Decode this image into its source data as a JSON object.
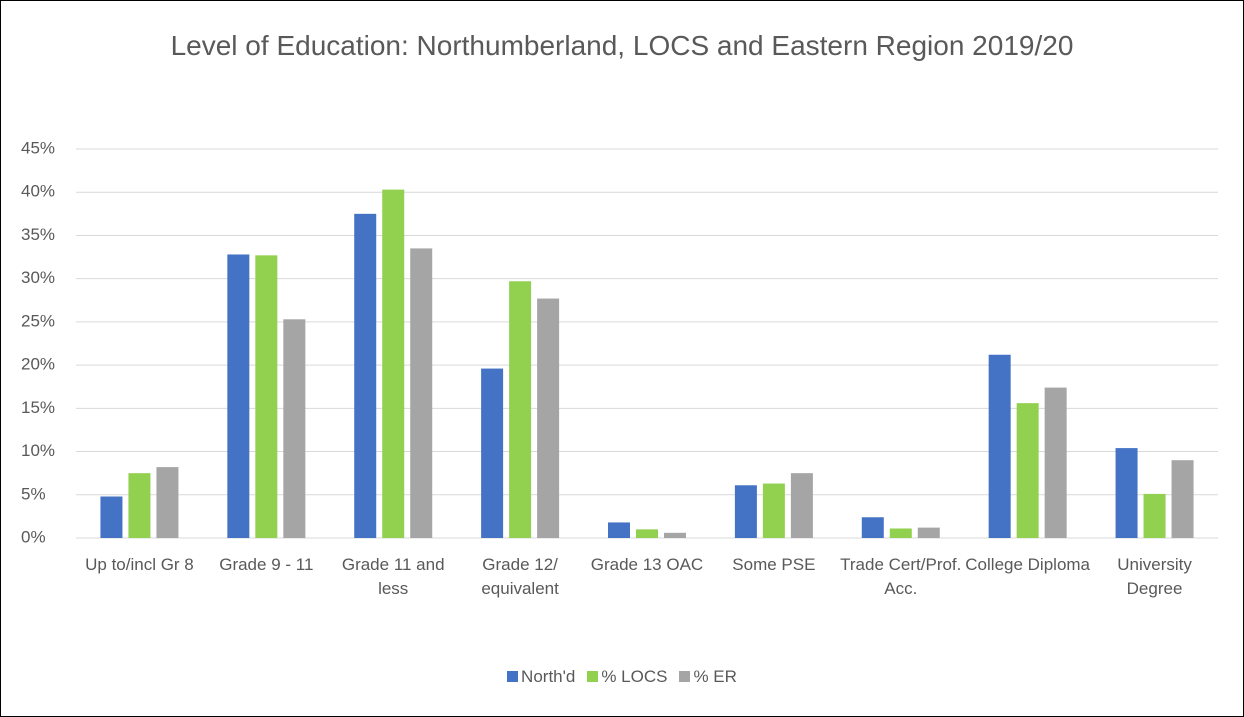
{
  "chart_data": {
    "type": "bar",
    "title": "Level of Education: Northumberland, LOCS and Eastern Region 2019/20",
    "categories": [
      "Up to/incl Gr 8",
      "Grade 9 - 11",
      "Grade 11 and less",
      "Grade 12/ equivalent",
      "Grade 13 OAC",
      "Some PSE",
      "Trade Cert/Prof. Acc.",
      "College Diploma",
      "University Degree"
    ],
    "series": [
      {
        "name": "North'd",
        "color": "#4472c4",
        "values": [
          4.8,
          32.8,
          37.5,
          19.6,
          1.8,
          6.1,
          2.4,
          21.2,
          10.4
        ]
      },
      {
        "name": "% LOCS",
        "color": "#92d050",
        "values": [
          7.5,
          32.7,
          40.3,
          29.7,
          1.0,
          6.3,
          1.1,
          15.6,
          5.1
        ]
      },
      {
        "name": "% ER",
        "color": "#a5a5a5",
        "values": [
          8.2,
          25.3,
          33.5,
          27.7,
          0.6,
          7.5,
          1.2,
          17.4,
          9.0
        ]
      }
    ],
    "ylim": [
      0,
      45
    ],
    "yticks": [
      {
        "value": 0,
        "label": "0%"
      },
      {
        "value": 5,
        "label": "5%"
      },
      {
        "value": 10,
        "label": "10%"
      },
      {
        "value": 15,
        "label": "15%"
      },
      {
        "value": 20,
        "label": "20%"
      },
      {
        "value": 25,
        "label": "25%"
      },
      {
        "value": 30,
        "label": "30%"
      },
      {
        "value": 35,
        "label": "35%"
      },
      {
        "value": 40,
        "label": "40%"
      },
      {
        "value": 45,
        "label": "45%"
      }
    ],
    "grid": true,
    "legend": "bottom"
  }
}
